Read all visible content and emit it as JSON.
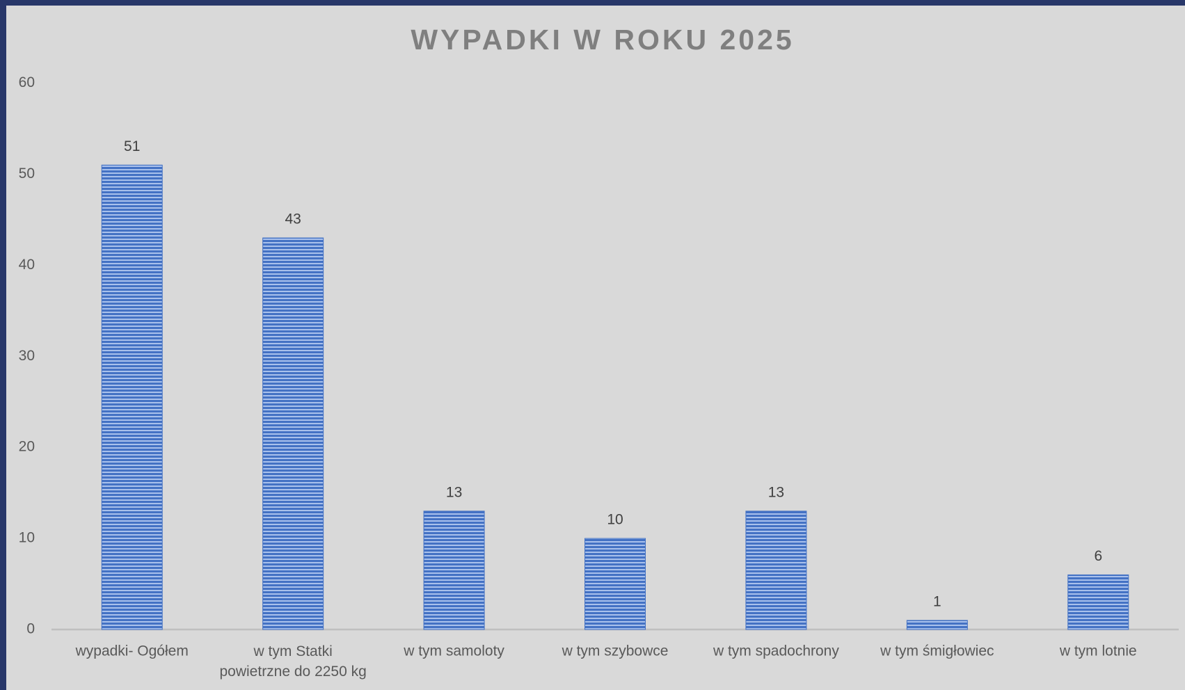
{
  "chart_data": {
    "type": "bar",
    "title": "WYPADKI W ROKU 2025",
    "categories": [
      "wypadki- Ogółem",
      "w tym Statki\npowietrzne do 2250 kg",
      "w tym samoloty",
      "w tym szybowce",
      "w tym spadochrony",
      "w tym śmigłowiec",
      "w tym lotnie"
    ],
    "values": [
      51,
      43,
      13,
      10,
      13,
      1,
      6
    ],
    "color": "#4472c4",
    "ylim": [
      0,
      60
    ],
    "yticks": [
      0,
      10,
      20,
      30,
      40,
      50,
      60
    ],
    "grid": false
  }
}
